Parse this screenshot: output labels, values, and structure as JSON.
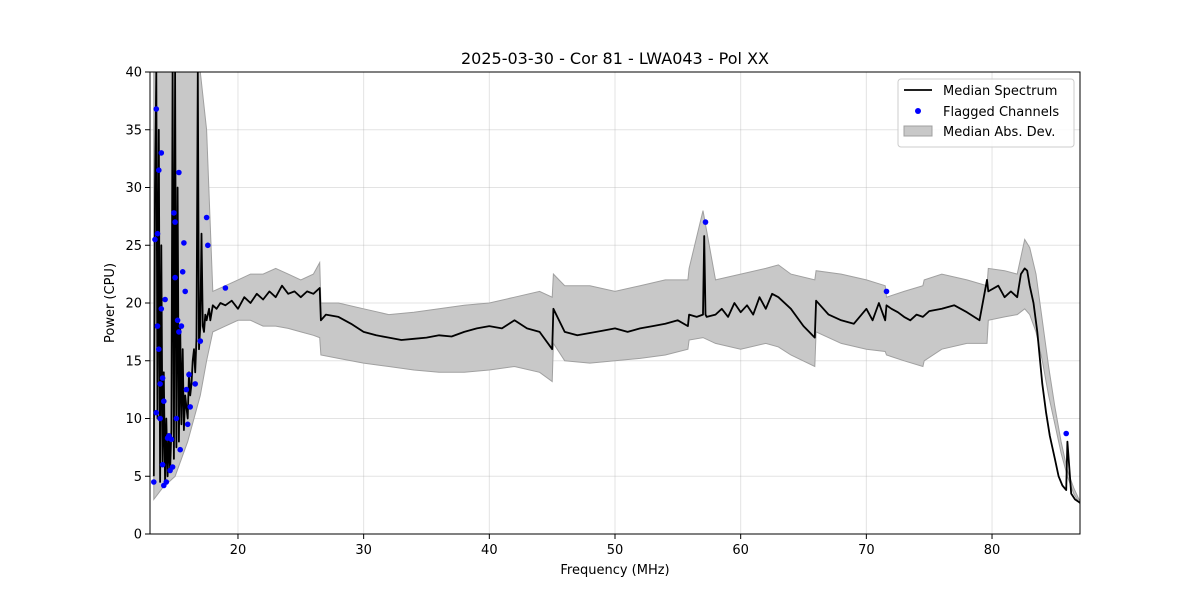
{
  "chart_data": {
    "type": "line",
    "title": "2025-03-30 - Cor 81 - LWA043 - Pol XX",
    "xlabel": "Frequency (MHz)",
    "ylabel": "Power (CPU)",
    "xlim": [
      13,
      87
    ],
    "ylim": [
      0,
      40
    ],
    "xticks": [
      20,
      30,
      40,
      50,
      60,
      70,
      80
    ],
    "yticks": [
      0,
      5,
      10,
      15,
      20,
      25,
      30,
      35,
      40
    ],
    "grid": true,
    "legend_position": "top-right",
    "colors": {
      "median": "#000000",
      "flagged": "#0000ff",
      "band": "#c8c8c8",
      "band_edge": "#a0a0a0"
    },
    "series": [
      {
        "name": "Median Spectrum",
        "kind": "line",
        "x": [
          13.3,
          13.4,
          13.5,
          13.6,
          13.7,
          13.8,
          13.9,
          14.0,
          14.1,
          14.2,
          14.3,
          14.4,
          14.5,
          14.6,
          14.7,
          14.8,
          14.9,
          15.0,
          15.1,
          15.2,
          15.3,
          15.4,
          15.5,
          15.6,
          15.7,
          15.8,
          15.9,
          16.0,
          16.1,
          16.2,
          16.3,
          16.4,
          16.5,
          16.6,
          16.7,
          16.8,
          16.9,
          17.0,
          17.1,
          17.2,
          17.3,
          17.4,
          17.5,
          17.6,
          17.7,
          17.8,
          18.0,
          18.3,
          18.6,
          19.0,
          19.5,
          20.0,
          20.5,
          21.0,
          21.5,
          22.0,
          22.5,
          23.0,
          23.5,
          24.0,
          24.5,
          25.0,
          25.5,
          26.0,
          26.5,
          26.6,
          27.0,
          28.0,
          29.0,
          30.0,
          31.0,
          32.0,
          33.0,
          34.0,
          35.0,
          36.0,
          37.0,
          38.0,
          39.0,
          40.0,
          41.0,
          42.0,
          43.0,
          44.0,
          45.0,
          45.1,
          46.0,
          47.0,
          48.0,
          49.0,
          50.0,
          51.0,
          52.0,
          53.0,
          54.0,
          55.0,
          55.8,
          55.9,
          56.5,
          57.0,
          57.1,
          57.2,
          57.3,
          58.0,
          58.5,
          59.0,
          59.5,
          60.0,
          60.5,
          61.0,
          61.5,
          62.0,
          62.5,
          63.0,
          64.0,
          65.0,
          65.9,
          66.0,
          67.0,
          68.0,
          69.0,
          70.0,
          70.5,
          71.0,
          71.5,
          71.6,
          72.0,
          72.5,
          73.0,
          73.5,
          74.0,
          74.5,
          75.0,
          76.0,
          77.0,
          78.0,
          79.0,
          79.6,
          79.7,
          80.5,
          81.0,
          81.5,
          82.0,
          82.3,
          82.6,
          82.8,
          83.0,
          83.3,
          83.6,
          84.0,
          84.3,
          84.6,
          85.0,
          85.3,
          85.6,
          85.9,
          86.0,
          86.3,
          86.6,
          87.0
        ],
        "y": [
          5.0,
          30.0,
          40.0,
          10.0,
          35.0,
          4.5,
          25.0,
          6.0,
          14.0,
          4.2,
          10.0,
          5.0,
          8.5,
          5.5,
          9.0,
          40.0,
          6.5,
          40.0,
          7.5,
          30.0,
          8.0,
          18.0,
          9.5,
          16.0,
          9.0,
          12.0,
          11.0,
          10.0,
          14.0,
          12.0,
          13.0,
          15.0,
          16.0,
          14.0,
          17.0,
          40.0,
          16.0,
          18.0,
          26.0,
          18.0,
          17.5,
          19.0,
          18.5,
          19.0,
          19.5,
          18.5,
          19.8,
          19.5,
          20.0,
          19.8,
          20.2,
          19.5,
          20.5,
          20.0,
          20.8,
          20.3,
          21.0,
          20.5,
          21.5,
          20.8,
          21.0,
          20.5,
          21.0,
          20.8,
          21.3,
          18.5,
          19.0,
          18.8,
          18.2,
          17.5,
          17.2,
          17.0,
          16.8,
          16.9,
          17.0,
          17.2,
          17.1,
          17.5,
          17.8,
          18.0,
          17.8,
          18.5,
          17.8,
          17.5,
          16.0,
          19.5,
          17.5,
          17.2,
          17.4,
          17.6,
          17.8,
          17.5,
          17.8,
          18.0,
          18.2,
          18.5,
          18.0,
          19.0,
          18.8,
          19.0,
          25.8,
          19.0,
          18.8,
          19.0,
          19.5,
          18.8,
          20.0,
          19.2,
          19.8,
          19.0,
          20.5,
          19.5,
          20.8,
          20.5,
          19.5,
          18.0,
          17.0,
          20.2,
          19.0,
          18.5,
          18.2,
          19.5,
          18.5,
          20.0,
          18.5,
          19.8,
          19.5,
          19.2,
          18.8,
          18.5,
          19.0,
          18.8,
          19.3,
          19.5,
          19.8,
          19.2,
          18.5,
          22.0,
          21.0,
          21.5,
          20.5,
          21.0,
          20.5,
          22.5,
          23.0,
          22.8,
          21.5,
          20.0,
          17.5,
          13.0,
          10.5,
          8.5,
          6.5,
          5.0,
          4.2,
          3.8,
          8.0,
          3.5,
          3.0,
          2.7
        ]
      },
      {
        "name": "Flagged Channels",
        "kind": "scatter",
        "x": [
          13.3,
          13.4,
          13.5,
          13.5,
          13.6,
          13.6,
          13.7,
          13.7,
          13.8,
          13.8,
          13.9,
          13.9,
          14.0,
          14.0,
          14.1,
          14.1,
          14.2,
          14.3,
          14.4,
          14.5,
          14.6,
          14.7,
          14.8,
          14.9,
          15.0,
          15.0,
          15.1,
          15.2,
          15.3,
          15.3,
          15.4,
          15.5,
          15.6,
          15.7,
          15.8,
          15.9,
          16.0,
          16.1,
          16.2,
          16.6,
          17.0,
          17.5,
          17.6,
          19.0,
          57.2,
          71.6,
          85.9
        ],
        "y": [
          4.5,
          25.5,
          36.8,
          10.5,
          26.0,
          18.0,
          16.0,
          31.5,
          13.0,
          10.0,
          33.0,
          19.5,
          6.0,
          13.5,
          4.2,
          11.5,
          20.3,
          4.5,
          8.3,
          8.5,
          5.5,
          8.2,
          5.8,
          27.8,
          27.0,
          22.2,
          10.0,
          18.5,
          31.3,
          17.5,
          7.3,
          18.0,
          22.7,
          25.2,
          21.0,
          12.5,
          9.5,
          13.8,
          11.0,
          13.0,
          16.7,
          27.4,
          25.0,
          21.3,
          27.0,
          21.0,
          8.7
        ]
      },
      {
        "name": "Median Abs. Dev.",
        "kind": "band",
        "x": [
          13.3,
          14.0,
          15.0,
          16.0,
          17.0,
          17.5,
          18.0,
          19.0,
          20.0,
          21.0,
          22.0,
          23.0,
          24.0,
          25.0,
          26.0,
          26.5,
          26.6,
          28.0,
          30.0,
          32.0,
          34.0,
          36.0,
          38.0,
          40.0,
          42.0,
          44.0,
          45.0,
          45.1,
          46.0,
          48.0,
          50.0,
          52.0,
          54.0,
          55.8,
          55.9,
          57.0,
          58.0,
          60.0,
          62.0,
          63.0,
          64.0,
          65.9,
          66.0,
          68.0,
          70.0,
          71.5,
          71.6,
          73.0,
          74.5,
          74.6,
          76.0,
          78.0,
          79.6,
          79.7,
          81.0,
          82.0,
          82.6,
          83.0,
          83.5,
          84.0,
          84.5,
          85.0,
          85.5,
          86.0,
          86.5,
          87.0
        ],
        "y_low": [
          3.0,
          4.0,
          5.0,
          8.0,
          12.0,
          15.0,
          17.5,
          18.0,
          18.5,
          18.5,
          18.0,
          18.0,
          17.8,
          17.5,
          17.2,
          17.0,
          15.5,
          15.2,
          14.8,
          14.5,
          14.2,
          14.0,
          14.0,
          14.2,
          14.5,
          14.0,
          13.2,
          16.5,
          15.0,
          14.8,
          15.0,
          15.2,
          15.5,
          16.0,
          16.8,
          17.0,
          16.5,
          16.0,
          16.5,
          16.2,
          15.5,
          14.5,
          17.5,
          16.5,
          16.0,
          15.8,
          15.5,
          15.0,
          14.5,
          15.0,
          16.0,
          16.5,
          16.5,
          18.5,
          18.8,
          19.0,
          19.5,
          19.0,
          17.5,
          15.0,
          12.0,
          9.5,
          7.0,
          5.0,
          3.5,
          2.6
        ],
        "y_high": [
          40.0,
          40.0,
          40.0,
          40.0,
          40.0,
          35.0,
          21.0,
          21.5,
          22.0,
          22.5,
          22.5,
          23.0,
          22.5,
          22.0,
          22.5,
          23.5,
          20.0,
          20.0,
          19.5,
          19.0,
          19.2,
          19.5,
          19.8,
          20.0,
          20.5,
          21.0,
          20.5,
          22.5,
          21.5,
          21.5,
          21.0,
          21.5,
          22.0,
          22.0,
          23.0,
          28.0,
          22.0,
          22.5,
          23.0,
          23.3,
          22.5,
          22.0,
          22.8,
          22.5,
          22.0,
          21.5,
          20.5,
          21.0,
          21.5,
          22.0,
          22.5,
          22.0,
          21.5,
          23.0,
          22.8,
          22.5,
          25.5,
          24.8,
          22.5,
          18.5,
          14.5,
          11.0,
          8.0,
          5.5,
          4.0,
          2.8
        ]
      }
    ]
  }
}
